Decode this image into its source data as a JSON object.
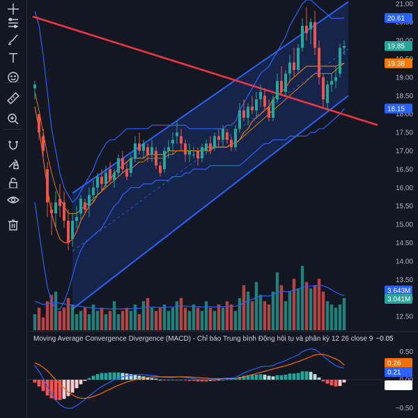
{
  "toolbar": {
    "tools": [
      {
        "name": "crosshair-icon",
        "label": "Crosshair"
      },
      {
        "name": "trendline-tools-icon",
        "label": "Trend line tools"
      },
      {
        "name": "brush-icon",
        "label": "Brush"
      },
      {
        "name": "text-tool-icon",
        "label": "Text"
      },
      {
        "name": "emoji-icon",
        "label": "Icons"
      },
      {
        "name": "ruler-icon",
        "label": "Measure"
      },
      {
        "name": "zoom-in-icon",
        "label": "Zoom in"
      },
      {
        "name": "magnet-icon",
        "label": "Magnet mode"
      },
      {
        "name": "lock-drawing-icon",
        "label": "Lock drawings"
      },
      {
        "name": "unlock-icon",
        "label": "Lock all"
      },
      {
        "name": "eye-icon",
        "label": "Show/Hide drawings"
      },
      {
        "name": "trash-icon",
        "label": "Remove drawings"
      }
    ]
  },
  "colors": {
    "background": "#131722",
    "up": "#26a69a",
    "down": "#ef5350",
    "bollinger": "#2962ff",
    "ma": "#f57c00",
    "channel": "#2962ff",
    "downtrend": "#f23645"
  },
  "chart_data": [
    {
      "type": "candlestick",
      "pane": "price",
      "ylim": [
        12.2,
        21.1
      ],
      "yticks": [
        "21.00",
        "20.50",
        "20.00",
        "19.50",
        "19.00",
        "18.50",
        "18.00",
        "17.50",
        "17.00",
        "16.50",
        "16.00",
        "15.50",
        "15.00",
        "14.50",
        "14.00",
        "13.50",
        "13.00",
        "12.50"
      ],
      "ohlc": [
        [
          18.7,
          18.9,
          18.4,
          18.8
        ],
        [
          18.0,
          18.0,
          17.3,
          17.5
        ],
        [
          17.4,
          17.6,
          16.8,
          17.0
        ],
        [
          16.5,
          16.7,
          15.2,
          15.6
        ],
        [
          15.4,
          15.6,
          14.7,
          15.3
        ],
        [
          15.3,
          15.9,
          14.9,
          15.6
        ],
        [
          15.7,
          16.1,
          15.2,
          15.5
        ],
        [
          15.6,
          15.9,
          14.9,
          15.1
        ],
        [
          15.1,
          15.4,
          14.3,
          14.5
        ],
        [
          14.6,
          15.3,
          14.4,
          15.1
        ],
        [
          15.1,
          15.5,
          14.9,
          15.2
        ],
        [
          15.3,
          15.8,
          15.1,
          15.7
        ],
        [
          15.6,
          15.7,
          15.3,
          15.4
        ],
        [
          15.5,
          16.0,
          15.2,
          15.8
        ],
        [
          15.8,
          16.2,
          15.6,
          16.0
        ],
        [
          16.0,
          16.4,
          15.8,
          16.3
        ],
        [
          16.3,
          16.5,
          15.9,
          16.1
        ],
        [
          16.1,
          16.6,
          16.0,
          16.4
        ],
        [
          16.5,
          16.7,
          16.1,
          16.2
        ],
        [
          16.2,
          16.5,
          16.0,
          16.4
        ],
        [
          16.4,
          16.9,
          16.3,
          16.8
        ],
        [
          16.8,
          17.0,
          16.4,
          16.5
        ],
        [
          16.5,
          16.7,
          16.2,
          16.3
        ],
        [
          16.4,
          16.9,
          16.3,
          16.8
        ],
        [
          16.8,
          17.4,
          16.7,
          17.2
        ],
        [
          17.2,
          17.5,
          16.9,
          17.0
        ],
        [
          17.0,
          17.3,
          16.8,
          17.2
        ],
        [
          17.1,
          17.2,
          16.7,
          16.9
        ],
        [
          16.9,
          17.3,
          16.7,
          17.1
        ],
        [
          17.0,
          17.1,
          16.5,
          16.6
        ],
        [
          16.6,
          16.7,
          16.3,
          16.4
        ],
        [
          16.5,
          17.1,
          16.4,
          17.0
        ],
        [
          17.0,
          17.3,
          16.8,
          17.1
        ],
        [
          17.2,
          17.5,
          16.9,
          17.3
        ],
        [
          17.4,
          17.8,
          17.2,
          17.5
        ],
        [
          17.4,
          17.6,
          17.0,
          17.2
        ],
        [
          17.2,
          17.3,
          16.7,
          16.9
        ],
        [
          16.9,
          17.2,
          16.7,
          17.0
        ],
        [
          16.9,
          17.1,
          16.8,
          16.9
        ],
        [
          17.0,
          17.1,
          16.6,
          16.8
        ],
        [
          16.8,
          17.2,
          16.7,
          17.1
        ],
        [
          17.0,
          17.3,
          16.9,
          17.2
        ],
        [
          17.2,
          17.4,
          16.9,
          17.0
        ],
        [
          17.1,
          17.5,
          17.0,
          17.4
        ],
        [
          17.4,
          17.6,
          17.1,
          17.3
        ],
        [
          17.3,
          17.7,
          17.1,
          17.6
        ],
        [
          17.5,
          17.6,
          17.2,
          17.3
        ],
        [
          17.3,
          17.4,
          17.0,
          17.1
        ],
        [
          17.1,
          17.7,
          17.0,
          17.6
        ],
        [
          17.6,
          18.3,
          17.5,
          18.1
        ],
        [
          18.1,
          18.4,
          17.8,
          17.9
        ],
        [
          17.9,
          18.3,
          17.7,
          18.2
        ],
        [
          18.2,
          18.5,
          18.0,
          18.1
        ],
        [
          18.1,
          18.6,
          17.9,
          18.4
        ],
        [
          18.4,
          18.8,
          18.2,
          18.6
        ],
        [
          18.5,
          18.7,
          18.1,
          18.2
        ],
        [
          18.2,
          18.4,
          17.8,
          17.9
        ],
        [
          17.9,
          18.5,
          17.8,
          18.4
        ],
        [
          18.4,
          19.1,
          18.3,
          18.9
        ],
        [
          18.9,
          19.3,
          18.5,
          18.6
        ],
        [
          18.6,
          19.2,
          18.5,
          19.1
        ],
        [
          19.1,
          19.6,
          18.9,
          19.4
        ],
        [
          19.4,
          19.8,
          19.0,
          19.2
        ],
        [
          19.2,
          19.9,
          19.1,
          19.8
        ],
        [
          19.8,
          20.6,
          19.7,
          20.4
        ],
        [
          20.4,
          20.9,
          20.0,
          20.2
        ],
        [
          20.3,
          20.6,
          19.9,
          20.5
        ],
        [
          20.5,
          20.8,
          19.6,
          19.8
        ],
        [
          19.8,
          20.0,
          18.8,
          19.0
        ],
        [
          19.0,
          19.1,
          18.2,
          18.4
        ],
        [
          18.3,
          18.9,
          18.1,
          18.8
        ],
        [
          18.8,
          19.1,
          18.6,
          18.9
        ],
        [
          18.9,
          19.3,
          18.7,
          19.0
        ],
        [
          19.1,
          19.9,
          19.0,
          19.8
        ],
        [
          19.8,
          20.0,
          19.6,
          19.85
        ]
      ],
      "bollinger_upper": [
        20.8,
        20.4,
        19.6,
        18.6,
        17.6,
        17.0,
        16.4,
        16.0,
        15.8,
        15.6,
        15.7,
        15.9,
        16.1,
        16.3,
        16.5,
        16.8,
        17.0,
        17.2,
        17.3,
        17.3,
        17.4,
        17.5,
        17.6,
        17.6,
        17.6,
        17.6,
        17.6,
        17.6,
        17.7,
        17.7,
        17.7,
        17.7,
        17.7,
        17.7,
        17.7,
        17.7,
        17.7,
        17.6,
        17.6,
        17.6,
        17.6,
        17.6,
        17.6,
        17.6,
        17.6,
        17.6,
        17.7,
        17.7,
        17.8,
        18.1,
        18.3,
        18.5,
        18.7,
        18.9,
        19.1,
        19.2,
        19.3,
        19.5,
        19.7,
        19.9,
        20.1,
        20.4,
        20.6,
        20.8,
        21.0,
        21.1,
        21.1,
        21.0,
        20.9,
        20.8,
        20.7,
        20.6,
        20.6,
        20.6,
        20.61
      ],
      "bollinger_lower": [
        15.6,
        14.8,
        14.0,
        13.3,
        12.9,
        12.7,
        12.7,
        12.9,
        13.2,
        13.6,
        14.0,
        14.3,
        14.5,
        14.6,
        14.7,
        14.8,
        14.9,
        15.1,
        15.3,
        15.5,
        15.6,
        15.8,
        15.9,
        16.0,
        16.0,
        16.0,
        16.1,
        16.1,
        16.1,
        16.2,
        16.2,
        16.2,
        16.2,
        16.3,
        16.3,
        16.3,
        16.4,
        16.4,
        16.5,
        16.5,
        16.5,
        16.5,
        16.6,
        16.6,
        16.6,
        16.6,
        16.6,
        16.6,
        16.6,
        16.6,
        16.7,
        16.8,
        16.9,
        17.0,
        17.1,
        17.2,
        17.2,
        17.3,
        17.3,
        17.3,
        17.3,
        17.4,
        17.4,
        17.4,
        17.4,
        17.4,
        17.5,
        17.5,
        17.6,
        17.6,
        17.7,
        17.8,
        17.9,
        18.0,
        18.15
      ],
      "bollinger_basis": [
        18.2,
        17.6,
        16.8,
        16.0,
        15.3,
        14.9,
        14.6,
        14.5,
        14.5,
        14.6,
        14.8,
        15.1,
        15.3,
        15.5,
        15.6,
        15.8,
        15.9,
        16.1,
        16.2,
        16.4,
        16.5,
        16.6,
        16.7,
        16.8,
        16.8,
        16.8,
        16.8,
        16.9,
        16.9,
        16.9,
        16.9,
        16.9,
        17.0,
        17.0,
        17.0,
        17.0,
        17.0,
        17.0,
        17.0,
        17.0,
        17.0,
        17.1,
        17.1,
        17.1,
        17.1,
        17.1,
        17.1,
        17.2,
        17.2,
        17.3,
        17.5,
        17.6,
        17.8,
        17.9,
        18.0,
        18.1,
        18.2,
        18.4,
        18.5,
        18.6,
        18.7,
        18.9,
        19.0,
        19.1,
        19.2,
        19.3,
        19.3,
        19.3,
        19.3,
        19.3,
        19.3,
        19.3,
        19.3,
        19.35,
        19.38
      ],
      "ma_line": [
        18.6,
        18.1,
        17.5,
        16.9,
        16.4,
        16.0,
        15.7,
        15.5,
        15.3,
        15.3,
        15.3,
        15.4,
        15.5,
        15.6,
        15.7,
        15.8,
        15.9,
        16.0,
        16.1,
        16.2,
        16.3,
        16.4,
        16.5,
        16.5,
        16.6,
        16.7,
        16.7,
        16.8,
        16.8,
        16.8,
        16.8,
        16.8,
        16.9,
        16.9,
        17.0,
        17.0,
        17.0,
        17.0,
        17.0,
        17.0,
        17.0,
        17.0,
        17.0,
        17.1,
        17.1,
        17.1,
        17.1,
        17.2,
        17.2,
        17.3,
        17.4,
        17.5,
        17.6,
        17.7,
        17.8,
        17.9,
        18.0,
        18.1,
        18.2,
        18.3,
        18.4,
        18.5,
        18.6,
        18.7,
        18.8,
        18.9,
        19.0,
        19.1,
        19.1,
        19.1,
        19.1,
        19.1,
        19.2,
        19.3,
        19.38
      ],
      "channel": {
        "upper": [
          [
            9,
            15.85
          ],
          [
            75,
            21.05
          ]
        ],
        "lower": [
          [
            9,
            12.7
          ],
          [
            75,
            18.5
          ]
        ]
      },
      "downtrend_line": {
        "from": [
          -0.5,
          20.65
        ],
        "to": [
          82,
          17.7
        ]
      },
      "volume": [
        5,
        7,
        4,
        9,
        11,
        12,
        6,
        7,
        10,
        8,
        5,
        6,
        7,
        5,
        8,
        6,
        7,
        5,
        6,
        9,
        5,
        6,
        7,
        6,
        8,
        5,
        9,
        10,
        7,
        6,
        7,
        8,
        6,
        7,
        9,
        10,
        7,
        6,
        8,
        7,
        6,
        9,
        7,
        6,
        8,
        7,
        9,
        8,
        6,
        10,
        14,
        12,
        9,
        15,
        11,
        9,
        8,
        12,
        18,
        14,
        9,
        12,
        16,
        13,
        20,
        15,
        13,
        14,
        16,
        12,
        9,
        8,
        7,
        8,
        10
      ],
      "volume_ma": [
        9,
        8.5,
        8,
        8.2,
        8.5,
        8.6,
        8.4,
        8.2,
        8,
        7.8,
        7.6,
        7.4,
        7.2,
        7,
        6.9,
        6.8,
        6.7,
        6.7,
        6.6,
        6.7,
        6.6,
        6.6,
        6.7,
        6.7,
        6.8,
        6.8,
        7,
        7.2,
        7.2,
        7.1,
        7.1,
        7.2,
        7.2,
        7.2,
        7.4,
        7.6,
        7.5,
        7.4,
        7.4,
        7.3,
        7.2,
        7.3,
        7.3,
        7.2,
        7.3,
        7.3,
        7.4,
        7.5,
        7.5,
        7.8,
        8.5,
        9.2,
        9.6,
        10.3,
        10.6,
        10.7,
        10.6,
        11,
        11.8,
        12.2,
        12,
        12.1,
        12.5,
        12.7,
        13.4,
        13.7,
        13.7,
        13.8,
        14,
        13.8,
        13.3,
        12.6,
        11.8,
        11.2,
        10.8
      ],
      "volume_badges": [
        "3.643M",
        "3.041M"
      ],
      "last_values": [
        "20.61",
        "19.85",
        "19.38",
        "18.15"
      ]
    },
    {
      "type": "histogram",
      "pane": "macd",
      "title": "Moving Average Convergence Divergence (MACD) - Chỉ báo Trung bình Động hội tụ và phân kỳ 12 26 close 9",
      "title_value": "−0.05",
      "ylim": [
        -0.68,
        0.62
      ],
      "yticks": [
        "0.50",
        "0.00",
        "−0.50"
      ],
      "macd": [
        0.25,
        0.15,
        0.02,
        -0.12,
        -0.25,
        -0.36,
        -0.44,
        -0.49,
        -0.51,
        -0.5,
        -0.46,
        -0.41,
        -0.35,
        -0.29,
        -0.23,
        -0.17,
        -0.12,
        -0.08,
        -0.04,
        0,
        0.03,
        0.05,
        0.07,
        0.08,
        0.09,
        0.09,
        0.09,
        0.08,
        0.08,
        0.07,
        0.05,
        0.04,
        0.04,
        0.04,
        0.05,
        0.05,
        0.04,
        0.03,
        0.02,
        0.01,
        0,
        0,
        0,
        0,
        0.01,
        0.02,
        0.03,
        0.03,
        0.04,
        0.08,
        0.12,
        0.15,
        0.18,
        0.2,
        0.23,
        0.24,
        0.24,
        0.25,
        0.29,
        0.31,
        0.34,
        0.38,
        0.41,
        0.44,
        0.5,
        0.53,
        0.55,
        0.54,
        0.49,
        0.42,
        0.36,
        0.3,
        0.25,
        0.22,
        0.21
      ],
      "signal": [
        0.3,
        0.27,
        0.22,
        0.16,
        0.08,
        0.0,
        -0.08,
        -0.15,
        -0.22,
        -0.27,
        -0.31,
        -0.33,
        -0.33,
        -0.32,
        -0.3,
        -0.27,
        -0.24,
        -0.2,
        -0.17,
        -0.13,
        -0.1,
        -0.07,
        -0.04,
        -0.02,
        0,
        0.02,
        0.03,
        0.04,
        0.05,
        0.05,
        0.05,
        0.05,
        0.05,
        0.05,
        0.05,
        0.05,
        0.05,
        0.05,
        0.04,
        0.04,
        0.03,
        0.03,
        0.02,
        0.02,
        0.02,
        0.02,
        0.02,
        0.02,
        0.02,
        0.03,
        0.05,
        0.07,
        0.09,
        0.11,
        0.13,
        0.15,
        0.17,
        0.19,
        0.21,
        0.23,
        0.25,
        0.27,
        0.3,
        0.32,
        0.35,
        0.38,
        0.41,
        0.44,
        0.45,
        0.45,
        0.43,
        0.4,
        0.37,
        0.33,
        0.26
      ],
      "histogram": [
        -0.05,
        -0.12,
        -0.2,
        -0.28,
        -0.33,
        -0.36,
        -0.36,
        -0.34,
        -0.29,
        -0.23,
        -0.15,
        -0.08,
        -0.02,
        0.03,
        0.07,
        0.1,
        0.12,
        0.12,
        0.13,
        0.13,
        0.13,
        0.12,
        0.11,
        0.1,
        0.09,
        0.07,
        0.06,
        0.04,
        0.03,
        0.02,
        0,
        -0.01,
        -0.01,
        -0.01,
        0,
        0,
        -0.01,
        -0.02,
        -0.02,
        -0.03,
        -0.03,
        -0.03,
        -0.02,
        -0.02,
        -0.01,
        0,
        0.01,
        0.01,
        0.02,
        0.05,
        0.07,
        0.08,
        0.09,
        0.09,
        0.1,
        0.09,
        0.07,
        0.06,
        0.08,
        0.08,
        0.09,
        0.11,
        0.11,
        0.12,
        0.15,
        0.15,
        0.14,
        0.1,
        0.04,
        -0.03,
        -0.07,
        -0.1,
        -0.12,
        -0.11,
        -0.05
      ],
      "last_values": [
        "0.26",
        "0.21",
        "−0.05"
      ]
    }
  ]
}
